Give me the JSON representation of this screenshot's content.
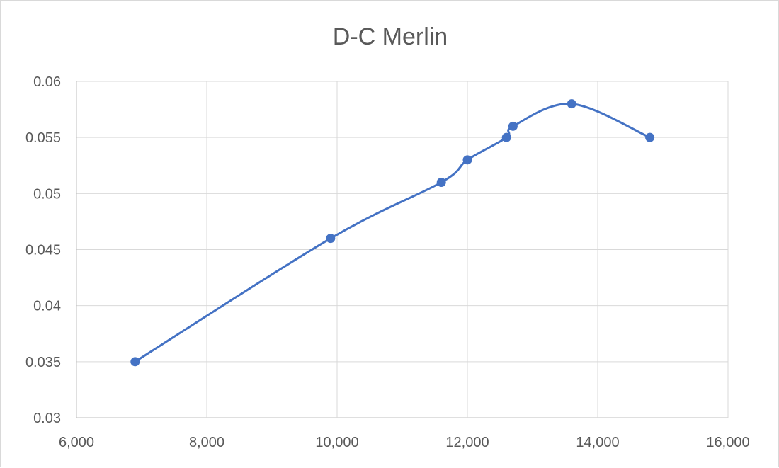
{
  "chart_data": {
    "type": "scatter",
    "title": "D-C Merlin",
    "xlabel": "",
    "ylabel": "",
    "xlim": [
      6000,
      16000
    ],
    "ylim": [
      0.03,
      0.06
    ],
    "x_ticks": [
      6000,
      8000,
      10000,
      12000,
      14000,
      16000
    ],
    "x_tick_labels": [
      "6,000",
      "8,000",
      "10,000",
      "12,000",
      "14,000",
      "16,000"
    ],
    "y_ticks": [
      0.03,
      0.035,
      0.04,
      0.045,
      0.05,
      0.055,
      0.06
    ],
    "y_tick_labels": [
      "0.03",
      "0.035",
      "0.04",
      "0.045",
      "0.05",
      "0.055",
      "0.06"
    ],
    "grid": true,
    "legend": "none",
    "line": "smoothed",
    "series": [
      {
        "color": "#4472c4",
        "x": [
          6900,
          9900,
          11600,
          12000,
          12600,
          12700,
          13600,
          14800
        ],
        "y": [
          0.035,
          0.046,
          0.051,
          0.053,
          0.055,
          0.056,
          0.058,
          0.055
        ]
      }
    ]
  }
}
